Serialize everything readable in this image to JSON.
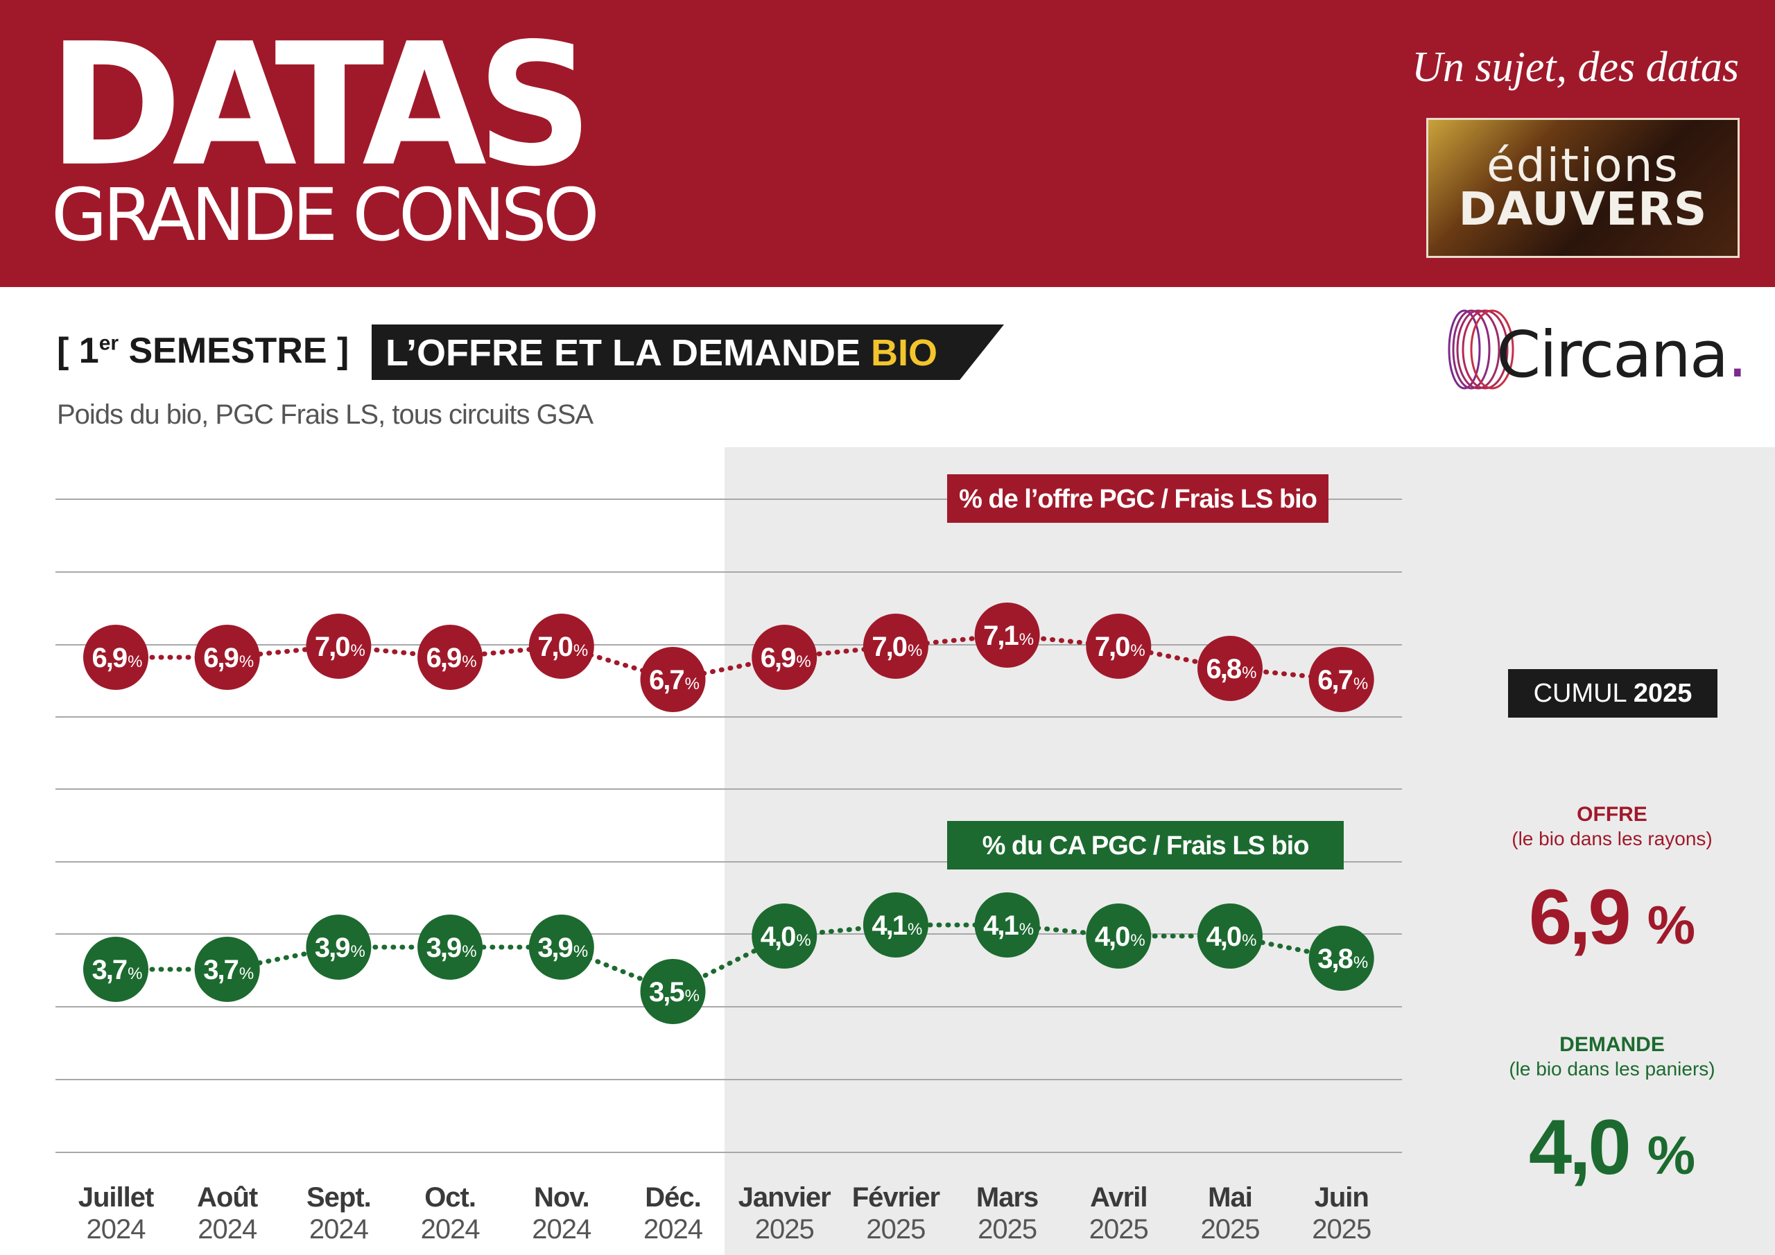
{
  "header": {
    "brand_main": "DATAS",
    "brand_sub": "GRANDE CONSO",
    "tagline": "Un sujet, des datas",
    "publisher_line1": "éditions",
    "publisher_line2": "DAUVERS"
  },
  "section": {
    "period_prefix": "[ 1",
    "period_sup": "er",
    "period_suffix": " SEMESTRE ]",
    "title": "L’OFFRE ET LA DEMANDE",
    "title_highlight": "BIO",
    "subtitle": "Poids du bio, PGC Frais LS, tous circuits GSA",
    "source_logo": "Circana",
    "source_logo_dot": "."
  },
  "colors": {
    "offer": "#a0192a",
    "demand": "#1c6a2f",
    "banner": "#a0192a",
    "highlight": "#f3c52c",
    "shade": "#ebebeb"
  },
  "chart_data": {
    "type": "line",
    "x": [
      "Juillet 2024",
      "Août 2024",
      "Sept. 2024",
      "Oct. 2024",
      "Nov. 2024",
      "Déc. 2024",
      "Janvier 2025",
      "Février 2025",
      "Mars 2025",
      "Avril 2025",
      "Mai 2025",
      "Juin 2025"
    ],
    "x_month_labels": [
      "Juillet",
      "Août",
      "Sept.",
      "Oct.",
      "Nov.",
      "Déc.",
      "Janvier",
      "Février",
      "Mars",
      "Avril",
      "Mai",
      "Juin"
    ],
    "x_year_labels": [
      "2024",
      "2024",
      "2024",
      "2024",
      "2024",
      "2024",
      "2025",
      "2025",
      "2025",
      "2025",
      "2025",
      "2025"
    ],
    "series": [
      {
        "name": "% de l’offre PGC / Frais LS bio",
        "values": [
          6.9,
          6.9,
          7.0,
          6.9,
          7.0,
          6.7,
          6.9,
          7.0,
          7.1,
          7.0,
          6.8,
          6.7
        ],
        "labels": [
          "6,9",
          "6,9",
          "7,0",
          "6,9",
          "7,0",
          "6,7",
          "6,9",
          "7,0",
          "7,1",
          "7,0",
          "6,8",
          "6,7"
        ],
        "color": "#a0192a"
      },
      {
        "name": "% du CA PGC / Frais LS bio",
        "values": [
          3.7,
          3.7,
          3.9,
          3.9,
          3.9,
          3.5,
          4.0,
          4.1,
          4.1,
          4.0,
          4.0,
          3.8
        ],
        "labels": [
          "3,7",
          "3,7",
          "3,9",
          "3,9",
          "3,9",
          "3,5",
          "4,0",
          "4,1",
          "4,1",
          "4,0",
          "4,0",
          "3,8"
        ],
        "color": "#1c6a2f"
      }
    ],
    "value_suffix": "%",
    "grid": true,
    "shaded_period": "Janvier 2025 – Juin 2025"
  },
  "cumul": {
    "label": "CUMUL",
    "year": "2025",
    "offer_title": "OFFRE",
    "offer_note": "(le bio dans les rayons)",
    "offer_value": "6,9",
    "demand_title": "DEMANDE",
    "demand_note": "(le bio dans les paniers)",
    "demand_value": "4,0",
    "pct": "%"
  }
}
